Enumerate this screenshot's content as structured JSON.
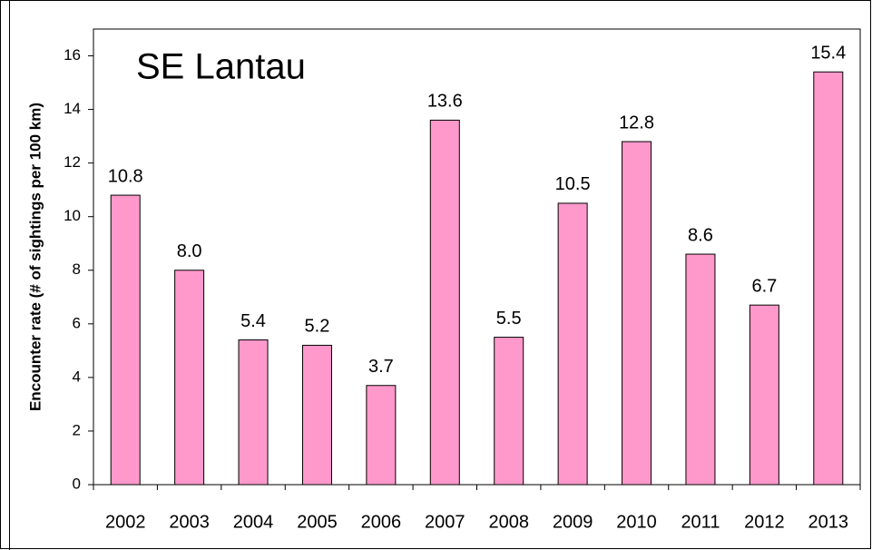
{
  "chart_data": {
    "type": "bar",
    "title": "SE Lantau",
    "y_label": "Encounter rate (# of sightings per 100 km)",
    "categories": [
      "2002",
      "2003",
      "2004",
      "2005",
      "2006",
      "2007",
      "2008",
      "2009",
      "2010",
      "2011",
      "2012",
      "2013"
    ],
    "values": [
      10.8,
      8.0,
      5.4,
      5.2,
      3.7,
      13.6,
      5.5,
      10.5,
      12.8,
      8.6,
      6.7,
      15.4
    ],
    "value_labels": [
      "10.8",
      "8.0",
      "5.4",
      "5.2",
      "3.7",
      "13.6",
      "5.5",
      "10.5",
      "12.8",
      "8.6",
      "6.7",
      "15.4"
    ],
    "color": "#ff99cc",
    "ylim": [
      0,
      17
    ],
    "yticks": [
      0,
      2,
      4,
      6,
      8,
      10,
      12,
      14,
      16
    ]
  }
}
